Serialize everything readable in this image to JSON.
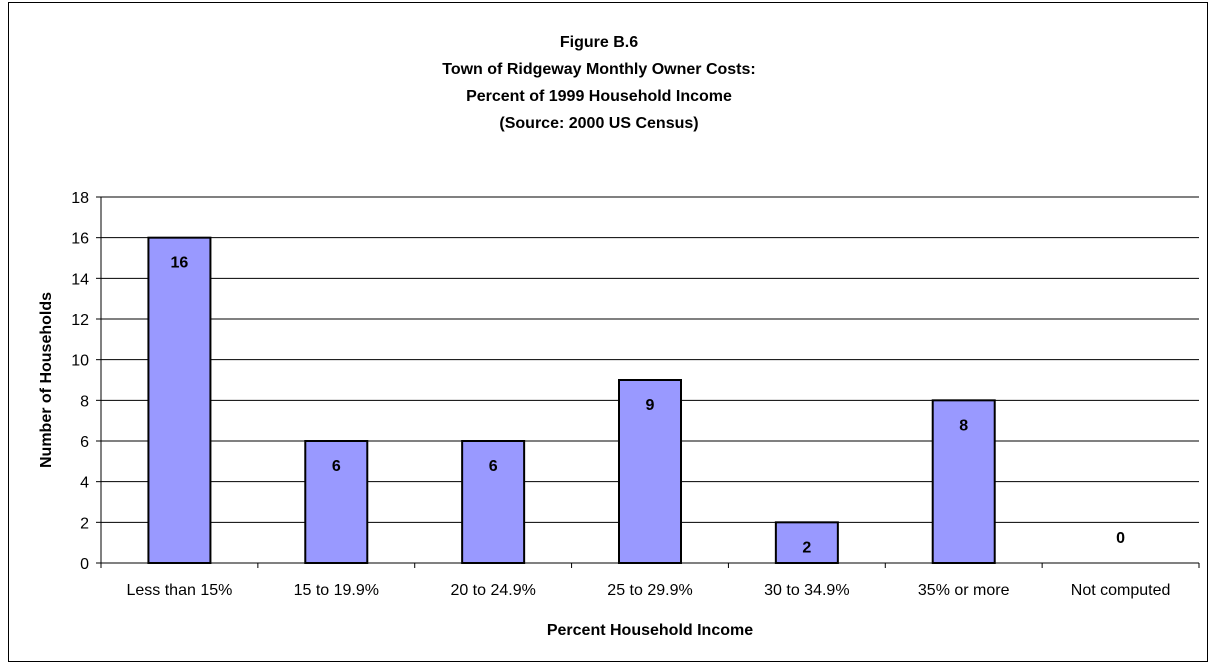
{
  "chart_data": {
    "type": "bar",
    "title_lines": [
      "Figure B.6",
      "Town of Ridgeway Monthly Owner Costs:",
      "Percent of 1999 Household Income",
      "(Source:  2000 US Census)"
    ],
    "categories": [
      "Less than 15%",
      "15 to 19.9%",
      "20 to 24.9%",
      "25 to 29.9%",
      "30 to 34.9%",
      "35% or more",
      "Not computed"
    ],
    "values": [
      16,
      6,
      6,
      9,
      2,
      8,
      0
    ],
    "xlabel": "Percent Household Income",
    "ylabel": "Number of Households",
    "ylim": [
      0,
      18
    ],
    "yticks": [
      0,
      2,
      4,
      6,
      8,
      10,
      12,
      14,
      16,
      18
    ],
    "grid": true,
    "legend": "none",
    "bar_color": "#9999FF",
    "bar_stroke": "#000000"
  }
}
